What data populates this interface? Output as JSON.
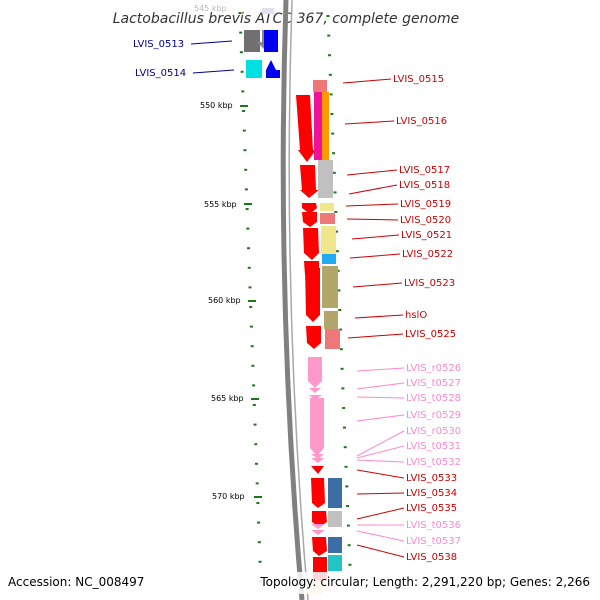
{
  "title": "Lactobacillus brevis ATCC 367, complete genome",
  "accession": "Accession: NC_008497",
  "topology": "Topology: circular; Length: 2,291,220 bp; Genes: 2,266",
  "colors": {
    "cds": "#ff0000",
    "rna": "#ff99cc",
    "blue_label": "#000099",
    "red_label": "#cc0000",
    "pink_label": "#ff88cc"
  },
  "kbp_labels": [
    "545 kbp",
    "550 kbp",
    "555 kbp",
    "560 kbp",
    "565 kbp",
    "570 kbp"
  ],
  "gene_labels": [
    {
      "text": "LVIS_0513",
      "kind": "blue"
    },
    {
      "text": "LVIS_0514",
      "kind": "blue"
    },
    {
      "text": "LVIS_0515",
      "kind": "red"
    },
    {
      "text": "LVIS_0516",
      "kind": "red"
    },
    {
      "text": "LVIS_0517",
      "kind": "red"
    },
    {
      "text": "LVIS_0518",
      "kind": "red"
    },
    {
      "text": "LVIS_0519",
      "kind": "red"
    },
    {
      "text": "LVIS_0520",
      "kind": "red"
    },
    {
      "text": "LVIS_0521",
      "kind": "red"
    },
    {
      "text": "LVIS_0522",
      "kind": "red"
    },
    {
      "text": "LVIS_0523",
      "kind": "red"
    },
    {
      "text": "hslO",
      "kind": "red"
    },
    {
      "text": "LVIS_0525",
      "kind": "red"
    },
    {
      "text": "LVIS_r0526",
      "kind": "pink"
    },
    {
      "text": "LVIS_t0527",
      "kind": "pink"
    },
    {
      "text": "LVIS_t0528",
      "kind": "pink"
    },
    {
      "text": "LVIS_r0529",
      "kind": "pink"
    },
    {
      "text": "LVIS_r0530",
      "kind": "pink"
    },
    {
      "text": "LVIS_t0531",
      "kind": "pink"
    },
    {
      "text": "LVIS_t0532",
      "kind": "pink"
    },
    {
      "text": "LVIS_0533",
      "kind": "red"
    },
    {
      "text": "LVIS_0534",
      "kind": "red"
    },
    {
      "text": "LVIS_0535",
      "kind": "red"
    },
    {
      "text": "LVIS_t0536",
      "kind": "pink"
    },
    {
      "text": "LVIS_t0537",
      "kind": "pink"
    },
    {
      "text": "LVIS_0538",
      "kind": "red"
    }
  ]
}
